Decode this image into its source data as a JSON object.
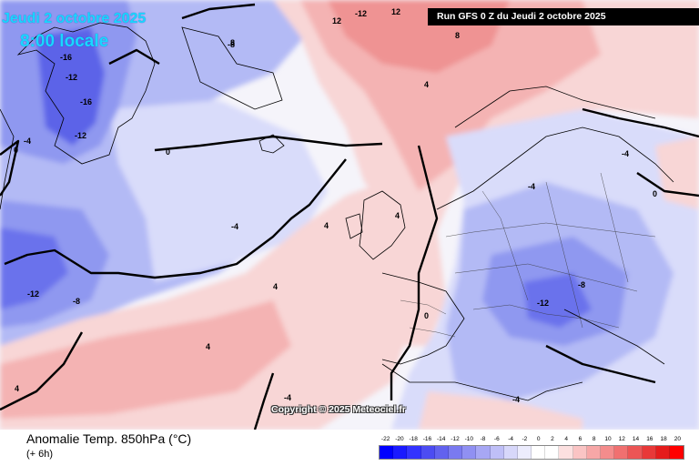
{
  "header": {
    "date": "Jeudi 2 octobre 2025",
    "time": "8:00 locale",
    "run": "Run GFS 0 Z du Jeudi 2 octobre 2025"
  },
  "footer": {
    "map_name": "Anomalie Temp. 850hPa (°C)",
    "offset": "(+ 6h)",
    "copyright": "Copyright © 2025 Meteociel.fr"
  },
  "legend": {
    "labels": [
      "-22",
      "-20",
      "-18",
      "-16",
      "-14",
      "-12",
      "-10",
      "-8",
      "-6",
      "-4",
      "-2",
      "0",
      "2",
      "4",
      "6",
      "8",
      "10",
      "12",
      "14",
      "16",
      "18",
      "20"
    ],
    "colors": [
      "#0000ff",
      "#1a1aff",
      "#3333ff",
      "#4c4cf2",
      "#6262ee",
      "#7a7af0",
      "#9090f2",
      "#a7a7f4",
      "#bfbff7",
      "#d7d7fa",
      "#ececfd",
      "#ffffff",
      "#ffffff",
      "#fce0e0",
      "#fac4c4",
      "#f7a7a7",
      "#f48c8c",
      "#f07070",
      "#ec5555",
      "#e83838",
      "#e41c1c",
      "#ff0000"
    ]
  },
  "map": {
    "colors": {
      "strong_cold": "#5c63e8",
      "cold": "#8f98f0",
      "mild_cold": "#b3baf5",
      "light_cold": "#d9dcfa",
      "neutral": "#f5f4fa",
      "light_warm": "#f8d6d6",
      "warm": "#f4b3b3",
      "strong_warm": "#ef9393"
    },
    "contour_labels": [
      "-16",
      "-12",
      "-16",
      "-12",
      "-4",
      "-8",
      "-4",
      "-12",
      "-8",
      "0",
      "4",
      "8",
      "12",
      "-12",
      "12",
      "8",
      "4",
      "0",
      "4",
      "4",
      "4",
      "-4",
      "-8",
      "-4",
      "-12",
      "-4",
      "0",
      "-4",
      "4",
      "0"
    ]
  }
}
